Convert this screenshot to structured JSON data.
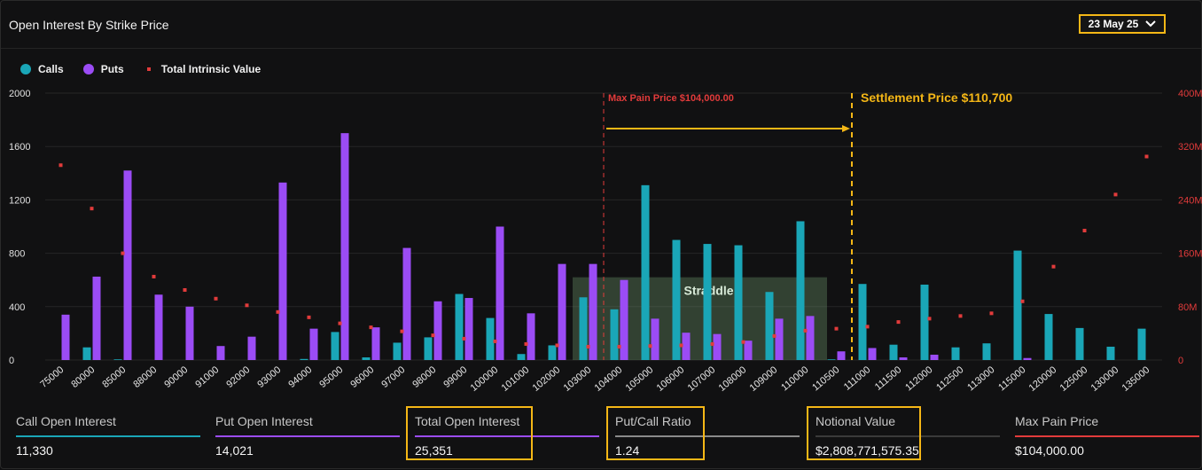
{
  "header": {
    "title": "Open Interest By Strike Price",
    "date_label": "23 May 25"
  },
  "legend": [
    {
      "label": "Calls",
      "color": "#1aa6b7"
    },
    {
      "label": "Puts",
      "color": "#9b4cf5"
    },
    {
      "label": "Total Intrinsic Value",
      "color": "#e23b3b"
    }
  ],
  "chart_data": {
    "type": "bar",
    "categories": [
      "75000",
      "80000",
      "85000",
      "88000",
      "90000",
      "91000",
      "92000",
      "93000",
      "94000",
      "95000",
      "96000",
      "97000",
      "98000",
      "99000",
      "100000",
      "101000",
      "102000",
      "103000",
      "104000",
      "105000",
      "106000",
      "107000",
      "108000",
      "109000",
      "110000",
      "110500",
      "111000",
      "111500",
      "112000",
      "112500",
      "113000",
      "115000",
      "120000",
      "125000",
      "130000",
      "135000"
    ],
    "series": [
      {
        "name": "Calls",
        "axis": "left",
        "values": [
          0,
          95,
          5,
          0,
          0,
          0,
          0,
          0,
          8,
          210,
          20,
          130,
          170,
          495,
          315,
          45,
          110,
          470,
          380,
          1310,
          900,
          870,
          860,
          510,
          1040,
          5,
          570,
          115,
          565,
          95,
          125,
          820,
          345,
          240,
          100,
          235
        ]
      },
      {
        "name": "Puts",
        "axis": "left",
        "values": [
          340,
          625,
          1420,
          490,
          400,
          105,
          175,
          1330,
          235,
          1700,
          245,
          840,
          440,
          465,
          1000,
          350,
          720,
          720,
          600,
          310,
          205,
          195,
          145,
          310,
          330,
          65,
          90,
          20,
          40,
          0,
          0,
          15,
          0,
          0,
          0,
          0
        ]
      },
      {
        "name": "Total Intrinsic Value",
        "axis": "right",
        "values": [
          292,
          227,
          160,
          125,
          105,
          92,
          82,
          72,
          64,
          55,
          49,
          43,
          37,
          32,
          28,
          24,
          22,
          20,
          20,
          21,
          22,
          24,
          27,
          36,
          44,
          47,
          50,
          57,
          62,
          66,
          70,
          88,
          140,
          194,
          248,
          305
        ]
      }
    ],
    "ylim": [
      0,
      2000
    ],
    "yticks": [
      "0",
      "400",
      "800",
      "1200",
      "1600",
      "2000"
    ],
    "y2lim": [
      0,
      400
    ],
    "y2ticks": [
      "0",
      "80M",
      "160M",
      "240M",
      "320M",
      "400M"
    ],
    "annotations": {
      "max_pain_label": "Max Pain Price $104,000.00",
      "settlement_label": "Settlement Price $110,700",
      "straddle_label": "Straddle"
    }
  },
  "stats": [
    {
      "label": "Call Open Interest",
      "value": "11,330",
      "color": "#1aa6b7"
    },
    {
      "label": "Put Open Interest",
      "value": "14,021",
      "color": "#9b4cf5"
    },
    {
      "label": "Total Open Interest",
      "value": "25,351",
      "color": "#9b4cf5"
    },
    {
      "label": "Put/Call Ratio",
      "value": "1.24",
      "color": "#8a8a8a"
    },
    {
      "label": "Notional Value",
      "value": "$2,808,771,575.35",
      "color": "#3a3a3a"
    },
    {
      "label": "Max Pain Price",
      "value": "$104,000.00",
      "color": "#e23b3b"
    }
  ],
  "colors": {
    "accent": "#f5b716",
    "calls": "#1aa6b7",
    "puts": "#9b4cf5",
    "intrinsic": "#e23b3b"
  }
}
